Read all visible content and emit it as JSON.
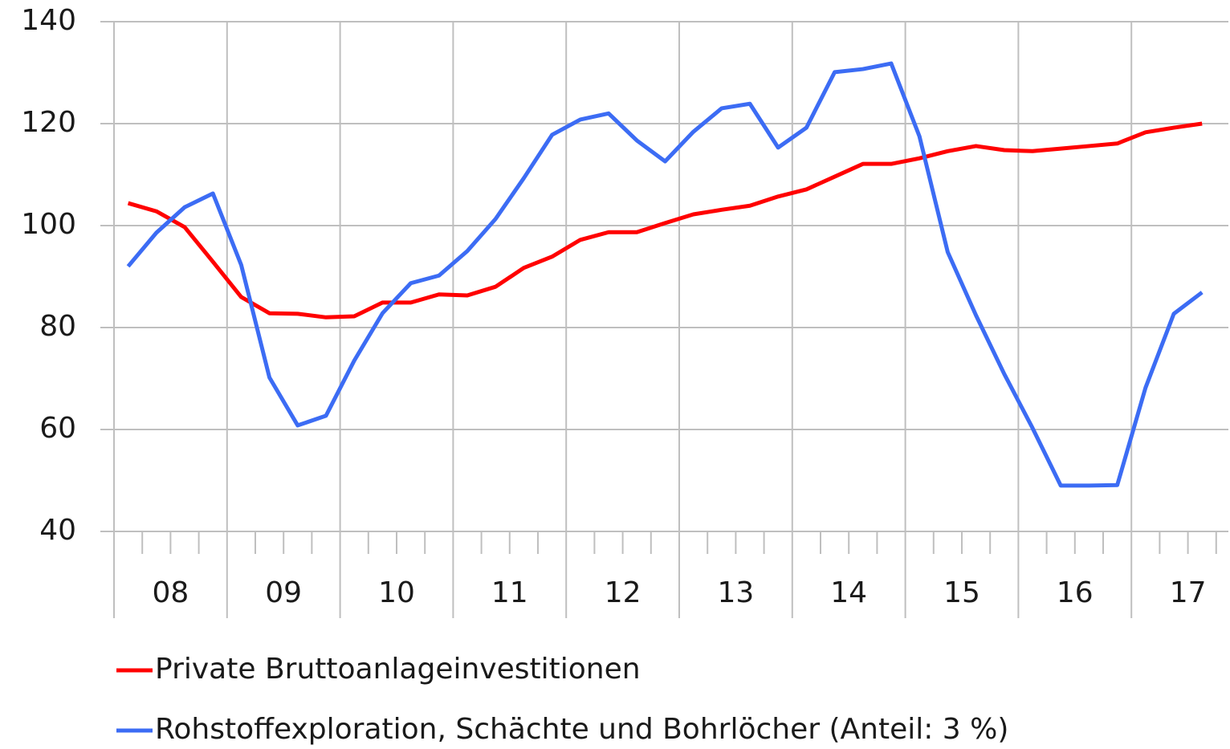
{
  "chart_data": {
    "type": "line",
    "categories": [
      null,
      null,
      null,
      null,
      null,
      null,
      null,
      null,
      null,
      null,
      null,
      null,
      null,
      null,
      null,
      null,
      null,
      null,
      null,
      null,
      null,
      null,
      null,
      null,
      null,
      null,
      null,
      null,
      null,
      null,
      null,
      null,
      null,
      null,
      null,
      null,
      null,
      null,
      null
    ],
    "year_labels": [
      "08",
      "09",
      "10",
      "11",
      "12",
      "13",
      "14",
      "15",
      "16",
      "17"
    ],
    "series": [
      {
        "name": "Private Bruttoanlageinvestitionen",
        "color": "#ff0000",
        "values": [
          104.4,
          102.8,
          99.7,
          92.9,
          86,
          82.8,
          82.7,
          82,
          82.2,
          84.9,
          84.9,
          86.5,
          86.3,
          88,
          91.7,
          93.9,
          97.2,
          98.7,
          98.7,
          100.5,
          102.2,
          103.1,
          103.9,
          105.7,
          107.1,
          109.6,
          112.1,
          112.1,
          113.2,
          114.6,
          115.6,
          114.8,
          114.6,
          115.1,
          115.6,
          116.1,
          118.3,
          119.2,
          120
        ]
      },
      {
        "name": "Rohstoffexploration, Schächte und Bohrlöcher (Anteil: 3 %)",
        "color": "#3c6cf4",
        "values": [
          92,
          98.6,
          103.6,
          106.3,
          92.3,
          70.2,
          60.8,
          62.7,
          73.5,
          82.8,
          88.7,
          90.2,
          95,
          101.3,
          109.3,
          117.8,
          120.8,
          122,
          116.7,
          112.6,
          118.4,
          123,
          123.9,
          115.3,
          119.2,
          130.1,
          130.7,
          131.8,
          117.5,
          94.8,
          82.4,
          70.9,
          60.3,
          49,
          49,
          49.1,
          68.2,
          82.7,
          86.9
        ]
      }
    ],
    "ylim": [
      40,
      140
    ],
    "yticks": [
      40,
      60,
      80,
      100,
      120,
      140
    ],
    "grid": true
  }
}
